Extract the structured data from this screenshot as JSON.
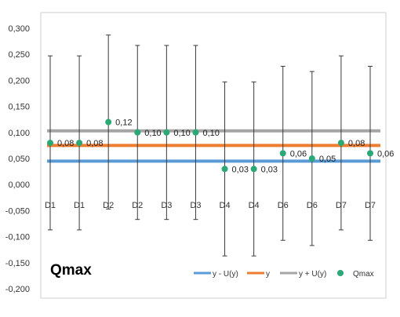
{
  "chart_data": {
    "type": "scatter",
    "title": "Qmax",
    "xlabel": "",
    "ylabel": "",
    "ylim": [
      -0.2,
      0.3
    ],
    "ytick_step": 0.05,
    "yticks": [
      "-0,200",
      "-0,150",
      "-0,100",
      "-0,050",
      "0,000",
      "0,050",
      "0,100",
      "0,150",
      "0,200",
      "0,250",
      "0,300"
    ],
    "grid": false,
    "legend_position": "bottom-right",
    "categories": [
      "D1",
      "D1",
      "D2",
      "D2",
      "D3",
      "D3",
      "D4",
      "D4",
      "D6",
      "D6",
      "D7",
      "D7"
    ],
    "points": {
      "name": "Qmax",
      "color": "#2aa876",
      "values": [
        0.08,
        0.08,
        0.12,
        0.1,
        0.1,
        0.1,
        0.03,
        0.03,
        0.06,
        0.05,
        0.08,
        0.06
      ],
      "labels": [
        "0,08",
        "0,08",
        "0,12",
        "0,10",
        "0,10",
        "0,10",
        "0,03",
        "0,03",
        "0,06",
        "0,05",
        "0,08",
        "0,06"
      ],
      "error_upper": [
        0.247,
        0.247,
        0.287,
        0.267,
        0.267,
        0.267,
        0.197,
        0.197,
        0.227,
        0.217,
        0.247,
        0.227
      ],
      "error_lower": [
        -0.087,
        -0.087,
        -0.047,
        -0.067,
        -0.067,
        -0.067,
        -0.137,
        -0.137,
        -0.107,
        -0.117,
        -0.087,
        -0.107
      ]
    },
    "reference_lines": [
      {
        "name": "y - U(y)",
        "value": 0.045,
        "color": "#5b9bd5"
      },
      {
        "name": "y",
        "value": 0.075,
        "color": "#ed7d31"
      },
      {
        "name": "y + U(y)",
        "value": 0.103,
        "color": "#a5a5a5"
      }
    ],
    "legend": [
      "y - U(y)",
      "y",
      "y + U(y)",
      "Qmax"
    ]
  }
}
